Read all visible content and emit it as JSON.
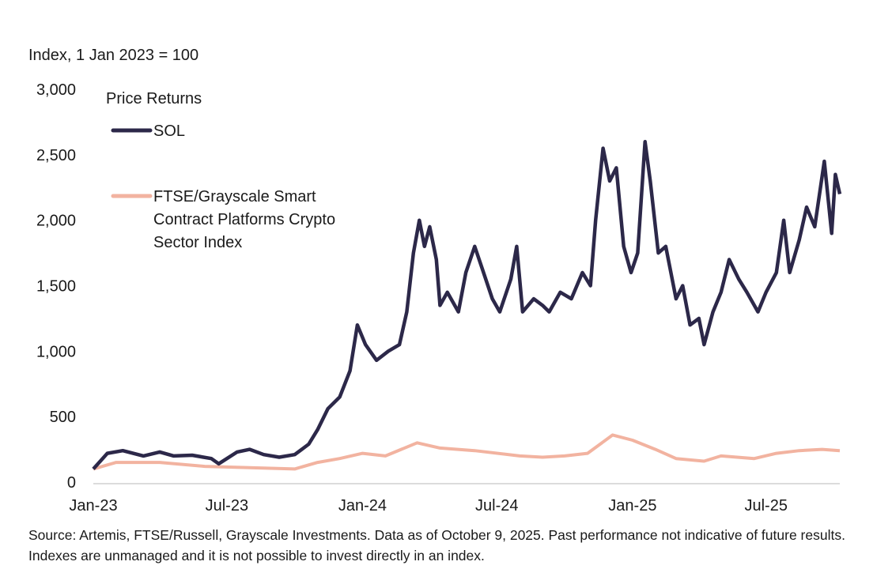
{
  "chart_data": {
    "type": "line",
    "ylabel": "Index, 1 Jan 2023 = 100",
    "ylim": [
      0,
      3000
    ],
    "yticks": [
      0,
      500,
      1000,
      1500,
      2000,
      2500,
      3000
    ],
    "ytick_labels": [
      "0",
      "500",
      "1,000",
      "1,500",
      "2,000",
      "2,500",
      "3,000"
    ],
    "xlim": [
      "2023-01-01",
      "2025-10-09"
    ],
    "xticks": [
      "2023-01-01",
      "2023-07-01",
      "2024-01-01",
      "2024-07-01",
      "2025-01-01",
      "2025-07-01"
    ],
    "xtick_labels": [
      "Jan-23",
      "Jul-23",
      "Jan-24",
      "Jul-24",
      "Jan-25",
      "Jul-25"
    ],
    "grid": false,
    "legend_title": "Price Returns",
    "legend_position": "top-left",
    "series": [
      {
        "name": "SOL",
        "color": "#2c2849",
        "points": [
          [
            "2023-01-01",
            100
          ],
          [
            "2023-01-20",
            220
          ],
          [
            "2023-02-10",
            240
          ],
          [
            "2023-03-10",
            200
          ],
          [
            "2023-04-01",
            230
          ],
          [
            "2023-04-20",
            200
          ],
          [
            "2023-05-15",
            205
          ],
          [
            "2023-06-10",
            180
          ],
          [
            "2023-06-20",
            140
          ],
          [
            "2023-07-15",
            230
          ],
          [
            "2023-08-01",
            250
          ],
          [
            "2023-08-20",
            210
          ],
          [
            "2023-09-10",
            190
          ],
          [
            "2023-10-01",
            210
          ],
          [
            "2023-10-20",
            290
          ],
          [
            "2023-11-01",
            400
          ],
          [
            "2023-11-15",
            560
          ],
          [
            "2023-12-01",
            650
          ],
          [
            "2023-12-15",
            850
          ],
          [
            "2023-12-25",
            1200
          ],
          [
            "2024-01-05",
            1050
          ],
          [
            "2024-01-20",
            930
          ],
          [
            "2024-02-05",
            1000
          ],
          [
            "2024-02-20",
            1050
          ],
          [
            "2024-03-01",
            1300
          ],
          [
            "2024-03-10",
            1750
          ],
          [
            "2024-03-18",
            2000
          ],
          [
            "2024-03-25",
            1800
          ],
          [
            "2024-04-01",
            1950
          ],
          [
            "2024-04-10",
            1700
          ],
          [
            "2024-04-15",
            1350
          ],
          [
            "2024-04-25",
            1450
          ],
          [
            "2024-05-10",
            1300
          ],
          [
            "2024-05-20",
            1600
          ],
          [
            "2024-06-01",
            1800
          ],
          [
            "2024-06-10",
            1650
          ],
          [
            "2024-06-25",
            1400
          ],
          [
            "2024-07-05",
            1300
          ],
          [
            "2024-07-20",
            1550
          ],
          [
            "2024-07-28",
            1800
          ],
          [
            "2024-08-05",
            1300
          ],
          [
            "2024-08-20",
            1400
          ],
          [
            "2024-09-01",
            1350
          ],
          [
            "2024-09-10",
            1300
          ],
          [
            "2024-09-25",
            1450
          ],
          [
            "2024-10-10",
            1400
          ],
          [
            "2024-10-25",
            1600
          ],
          [
            "2024-11-05",
            1500
          ],
          [
            "2024-11-12",
            2000
          ],
          [
            "2024-11-22",
            2550
          ],
          [
            "2024-12-01",
            2300
          ],
          [
            "2024-12-10",
            2400
          ],
          [
            "2024-12-20",
            1800
          ],
          [
            "2024-12-30",
            1600
          ],
          [
            "2025-01-08",
            1750
          ],
          [
            "2025-01-18",
            2600
          ],
          [
            "2025-01-25",
            2300
          ],
          [
            "2025-02-05",
            1750
          ],
          [
            "2025-02-15",
            1800
          ],
          [
            "2025-03-01",
            1400
          ],
          [
            "2025-03-10",
            1500
          ],
          [
            "2025-03-20",
            1200
          ],
          [
            "2025-04-01",
            1250
          ],
          [
            "2025-04-08",
            1050
          ],
          [
            "2025-04-20",
            1300
          ],
          [
            "2025-05-01",
            1450
          ],
          [
            "2025-05-12",
            1700
          ],
          [
            "2025-05-25",
            1550
          ],
          [
            "2025-06-05",
            1450
          ],
          [
            "2025-06-20",
            1300
          ],
          [
            "2025-07-01",
            1450
          ],
          [
            "2025-07-15",
            1600
          ],
          [
            "2025-07-25",
            2000
          ],
          [
            "2025-08-02",
            1600
          ],
          [
            "2025-08-15",
            1850
          ],
          [
            "2025-08-25",
            2100
          ],
          [
            "2025-09-05",
            1950
          ],
          [
            "2025-09-18",
            2450
          ],
          [
            "2025-09-28",
            1900
          ],
          [
            "2025-10-03",
            2350
          ],
          [
            "2025-10-09",
            2200
          ]
        ]
      },
      {
        "name": "FTSE/Grayscale Smart Contract Platforms Crypto Sector Index",
        "color": "#f2b3a0",
        "points": [
          [
            "2023-01-01",
            100
          ],
          [
            "2023-02-01",
            150
          ],
          [
            "2023-04-01",
            150
          ],
          [
            "2023-06-01",
            120
          ],
          [
            "2023-08-01",
            110
          ],
          [
            "2023-10-01",
            100
          ],
          [
            "2023-11-01",
            150
          ],
          [
            "2023-12-01",
            180
          ],
          [
            "2024-01-01",
            220
          ],
          [
            "2024-02-01",
            200
          ],
          [
            "2024-03-15",
            300
          ],
          [
            "2024-04-15",
            260
          ],
          [
            "2024-06-01",
            240
          ],
          [
            "2024-08-01",
            200
          ],
          [
            "2024-09-01",
            190
          ],
          [
            "2024-10-01",
            200
          ],
          [
            "2024-11-01",
            220
          ],
          [
            "2024-12-05",
            360
          ],
          [
            "2025-01-01",
            320
          ],
          [
            "2025-02-01",
            250
          ],
          [
            "2025-03-01",
            180
          ],
          [
            "2025-04-08",
            160
          ],
          [
            "2025-05-01",
            200
          ],
          [
            "2025-06-15",
            180
          ],
          [
            "2025-07-15",
            220
          ],
          [
            "2025-08-15",
            240
          ],
          [
            "2025-09-15",
            250
          ],
          [
            "2025-10-09",
            240
          ]
        ]
      }
    ]
  },
  "legend_labels": {
    "sol": "SOL",
    "index_line1": "FTSE/Grayscale Smart",
    "index_line2": "Contract Platforms Crypto",
    "index_line3": "Sector Index"
  },
  "source": "Source: Artemis, FTSE/Russell, Grayscale Investments. Data as of October 9, 2025. Past performance not indicative of future results. Indexes are unmanaged and it is not possible to invest directly in an index."
}
